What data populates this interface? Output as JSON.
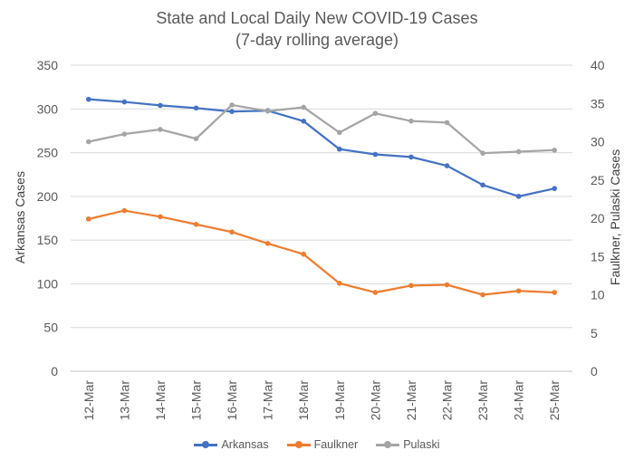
{
  "chart_data": {
    "type": "line",
    "title": "State and Local Daily New COVID-19 Cases",
    "subtitle": "(7-day rolling average)",
    "categories": [
      "12-Mar",
      "13-Mar",
      "14-Mar",
      "15-Mar",
      "16-Mar",
      "17-Mar",
      "18-Mar",
      "19-Mar",
      "20-Mar",
      "21-Mar",
      "22-Mar",
      "23-Mar",
      "24-Mar",
      "25-Mar"
    ],
    "ylabel": "Arkansas Cases",
    "y2label": "Faulkner, Pulaski Cases",
    "ylim": [
      0,
      350
    ],
    "y2lim": [
      0,
      40
    ],
    "yticks": [
      "0",
      "50",
      "100",
      "150",
      "200",
      "250",
      "300",
      "350"
    ],
    "y2ticks": [
      "0",
      "5",
      "10",
      "15",
      "20",
      "25",
      "30",
      "35",
      "40"
    ],
    "grid": true,
    "legend_position": "bottom",
    "series": [
      {
        "name": "Arkansas",
        "axis": "left",
        "color": "#4472C4",
        "values": [
          311,
          308,
          304,
          301,
          297,
          298,
          286,
          254,
          248,
          245,
          235,
          213,
          200,
          209
        ]
      },
      {
        "name": "Faulkner",
        "axis": "right",
        "color": "#ED7D31",
        "values": [
          19.9,
          21.0,
          20.2,
          19.2,
          18.2,
          16.7,
          15.3,
          11.5,
          10.3,
          11.2,
          11.3,
          10.0,
          10.5,
          10.3
        ]
      },
      {
        "name": "Pulaski",
        "axis": "right",
        "color": "#A5A5A5",
        "values": [
          30.0,
          31.0,
          31.6,
          30.4,
          34.8,
          34.0,
          34.5,
          31.2,
          33.7,
          32.7,
          32.5,
          28.5,
          28.7,
          28.9
        ]
      }
    ]
  }
}
